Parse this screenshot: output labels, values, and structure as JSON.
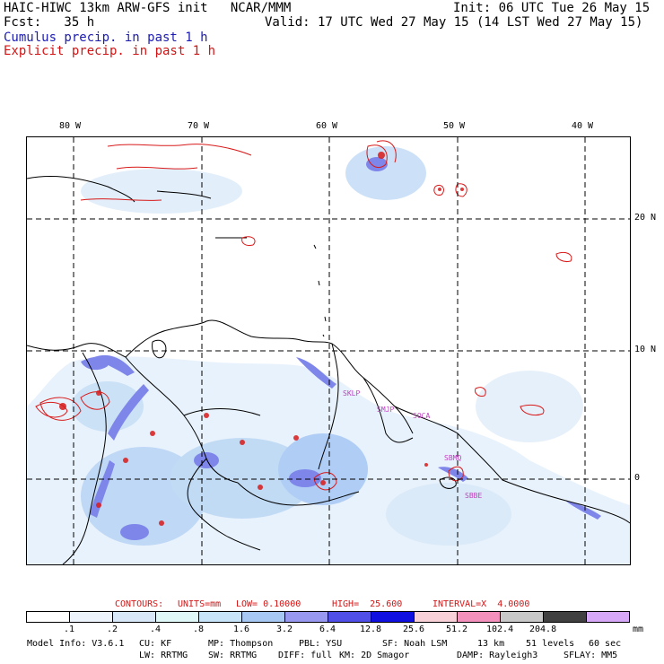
{
  "header": {
    "line1_left": "HAIC-HIWC 13km ARW-GFS init   NCAR/MMM",
    "line1_right": "Init: 06 UTC Tue 26 May 15",
    "line2_left": "Fcst:   35 h",
    "line2_right": "Valid: 17 UTC Wed 27 May 15 (14 LST Wed 27 May 15)",
    "line3": "Cumulus precip. in past 1 h",
    "line4": "Explicit precip. in past 1 h"
  },
  "map": {
    "lon_labels": [
      "80 W",
      "70 W",
      "60 W",
      "50 W",
      "40 W"
    ],
    "lat_labels": [
      "20 N",
      "10 N",
      "0"
    ],
    "stations": [
      "SKLP",
      "SMJP",
      "SOCA",
      "SBBE",
      "SBMQ"
    ]
  },
  "contours": {
    "label": "CONTOURS:",
    "units": "UNITS=mm",
    "low": "LOW= 0.10000",
    "high": "HIGH=  25.600",
    "interval": "INTERVAL=X  4.0000"
  },
  "legend": {
    "ticks": [
      ".1",
      ".2",
      ".4",
      ".8",
      "1.6",
      "3.2",
      "6.4",
      "12.8",
      "25.6",
      "51.2",
      "102.4",
      "204.8"
    ],
    "unit": "mm",
    "colors": [
      "#ffffff",
      "#eef4fc",
      "#d8e8f8",
      "#e0f8f8",
      "#c8e4f8",
      "#a8c8f4",
      "#9898f0",
      "#5050e8",
      "#1010e0",
      "#f8d0d8",
      "#f490bc",
      "#c8c8c8",
      "#404040",
      "#d8a8f8"
    ]
  },
  "footer": {
    "model_info": "Model Info: V3.6.1",
    "cu": "CU: KF",
    "mp": "MP: Thompson",
    "pbl": "PBL: YSU",
    "sf": "SF: Noah LSM",
    "res": "13 km",
    "levels": "51 levels",
    "dt": "60 sec",
    "lw": "LW: RRTMG",
    "sw": "SW: RRTMG",
    "diff": "DIFF: full",
    "km": "KM: 2D Smagor",
    "damp": "DAMP: Rayleigh3",
    "sflay": "SFLAY: MM5"
  }
}
